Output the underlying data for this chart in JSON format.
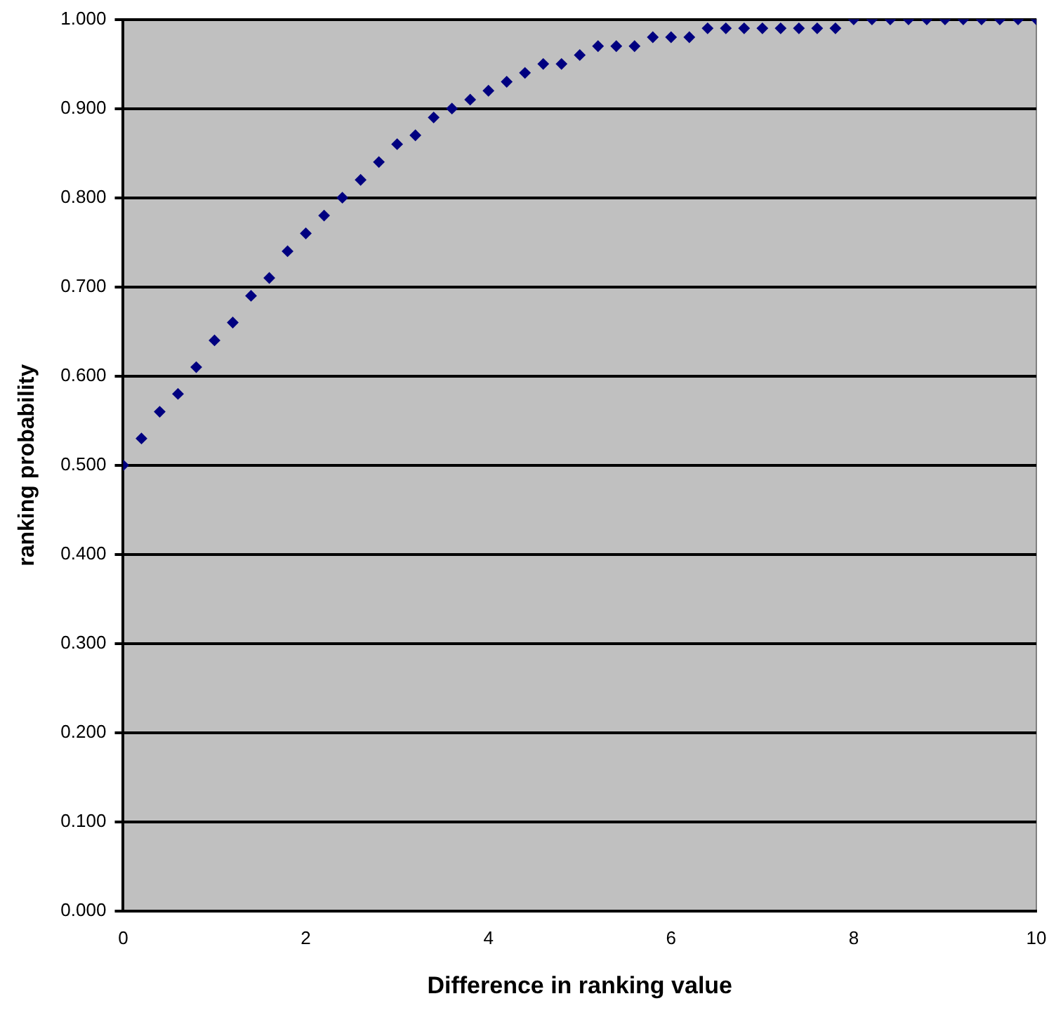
{
  "chart_data": {
    "type": "scatter",
    "xlabel": "Difference in ranking value",
    "ylabel": "ranking probability",
    "x": [
      0,
      0.2,
      0.4,
      0.6,
      0.8,
      1,
      1.2,
      1.4,
      1.6,
      1.8,
      2,
      2.2,
      2.4,
      2.6,
      2.8,
      3,
      3.2,
      3.4,
      3.6,
      3.8,
      4,
      4.2,
      4.4,
      4.6,
      4.8,
      5,
      5.2,
      5.4,
      5.6,
      5.8,
      6,
      6.2,
      6.4,
      6.6,
      6.8,
      7,
      7.2,
      7.4,
      7.6,
      7.8,
      8,
      8.2,
      8.4,
      8.6,
      8.8,
      9,
      9.2,
      9.4,
      9.6,
      9.8,
      10
    ],
    "series": [
      {
        "color": "#000080",
        "values": [
          0.5,
          0.53,
          0.56,
          0.58,
          0.61,
          0.64,
          0.66,
          0.69,
          0.71,
          0.74,
          0.76,
          0.78,
          0.8,
          0.82,
          0.84,
          0.86,
          0.87,
          0.89,
          0.9,
          0.91,
          0.92,
          0.93,
          0.94,
          0.95,
          0.95,
          0.96,
          0.97,
          0.97,
          0.97,
          0.98,
          0.98,
          0.98,
          0.99,
          0.99,
          0.99,
          0.99,
          0.99,
          0.99,
          0.99,
          0.99,
          1.0,
          1.0,
          1.0,
          1.0,
          1.0,
          1.0,
          1.0,
          1.0,
          1.0,
          1.0,
          1.0
        ]
      }
    ],
    "xlim": [
      0,
      10
    ],
    "xticks": [
      0,
      2,
      4,
      6,
      8,
      10
    ],
    "ylim": [
      0,
      1
    ],
    "yticks": [
      {
        "value": 0,
        "label": "0.000"
      },
      {
        "value": 0.1,
        "label": "0.100"
      },
      {
        "value": 0.2,
        "label": "0.200"
      },
      {
        "value": 0.3,
        "label": "0.300"
      },
      {
        "value": 0.4,
        "label": "0.400"
      },
      {
        "value": 0.5,
        "label": "0.500"
      },
      {
        "value": 0.6,
        "label": "0.600"
      },
      {
        "value": 0.7,
        "label": "0.700"
      },
      {
        "value": 0.8,
        "label": "0.800"
      },
      {
        "value": 0.9,
        "label": "0.900"
      },
      {
        "value": 1,
        "label": "1.000"
      }
    ],
    "grid": "y",
    "legend": false,
    "marker": "diamond"
  }
}
